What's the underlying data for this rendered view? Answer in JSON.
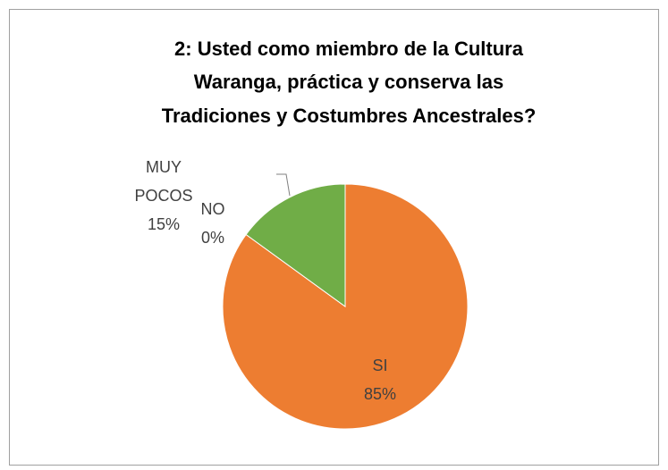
{
  "chart_data": {
    "type": "pie",
    "title": [
      "2: Usted como miembro de la Cultura",
      "Waranga, práctica y conserva las",
      "Tradiciones y Costumbres Ancestrales?"
    ],
    "categories": [
      "SI",
      "NO",
      "MUY POCOS"
    ],
    "values": [
      85,
      0,
      15
    ],
    "value_labels": [
      "85%",
      "0%",
      "15%"
    ],
    "colors": [
      "#ed7d31",
      "#a5a5a5",
      "#70ad47"
    ]
  }
}
